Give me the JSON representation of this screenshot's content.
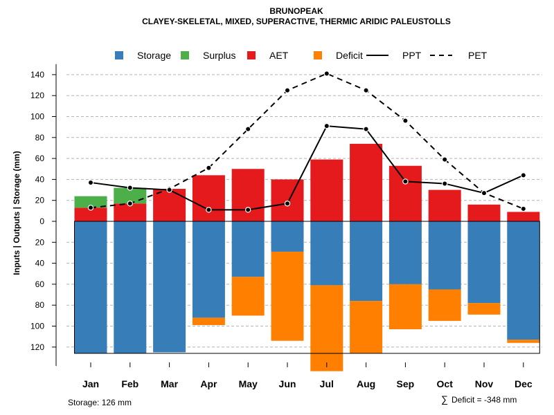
{
  "chart_data": {
    "type": "bar",
    "title": "BRUNOPEAK",
    "subtitle": "CLAYEY-SKELETAL, MIXED, SUPERACTIVE, THERMIC ARIDIC PALEUSTOLLS",
    "ylabel": "Inputs | Outputs | Storage    (mm)",
    "categories": [
      "Jan",
      "Feb",
      "Mar",
      "Apr",
      "May",
      "Jun",
      "Jul",
      "Aug",
      "Sep",
      "Oct",
      "Nov",
      "Dec"
    ],
    "ylim": [
      -140,
      150
    ],
    "y_ticks": [
      140,
      120,
      100,
      80,
      60,
      40,
      20,
      0,
      -20,
      -40,
      -60,
      -80,
      -100,
      -120
    ],
    "y_tick_labels": [
      "140",
      "120",
      "100",
      "80",
      "60",
      "40",
      "20",
      "0",
      "20",
      "40",
      "60",
      "80",
      "100",
      "120"
    ],
    "grid": true,
    "legend": [
      {
        "name": "Storage",
        "kind": "box",
        "color": "#377EB8"
      },
      {
        "name": "Surplus",
        "kind": "box",
        "color": "#4DAF4A"
      },
      {
        "name": "AET",
        "kind": "box",
        "color": "#E41A1C"
      },
      {
        "name": "Deficit",
        "kind": "box",
        "color": "#FF7F00"
      },
      {
        "name": "PPT",
        "kind": "solid-line",
        "color": "#000000"
      },
      {
        "name": "PET",
        "kind": "dashed-line",
        "color": "#000000"
      }
    ],
    "storage_capacity": 126,
    "series": [
      {
        "name": "AET",
        "color": "#E41A1C",
        "values": [
          13,
          17,
          31,
          44,
          50,
          40,
          59,
          74,
          53,
          30,
          16,
          9
        ]
      },
      {
        "name": "Surplus",
        "color": "#4DAF4A",
        "values": [
          11,
          15,
          0,
          0,
          0,
          0,
          0,
          0,
          0,
          0,
          0,
          0
        ]
      },
      {
        "name": "Storage",
        "color": "#377EB8",
        "values": [
          126,
          126,
          125,
          92,
          53,
          29,
          61,
          76,
          60,
          65,
          78,
          113
        ]
      },
      {
        "name": "Deficit",
        "color": "#FF7F00",
        "values": [
          0,
          0,
          0,
          7,
          37,
          85,
          82,
          50,
          43,
          30,
          11,
          3
        ]
      },
      {
        "name": "PPT",
        "color": "#000000",
        "values": [
          37,
          32,
          30,
          11,
          11,
          17,
          91,
          88,
          38,
          36,
          27,
          44
        ]
      },
      {
        "name": "PET",
        "color": "#000000",
        "values": [
          13,
          17,
          31,
          51,
          88,
          125,
          141,
          125,
          96,
          59,
          27,
          12
        ]
      }
    ],
    "footer_left": "Storage: 126 mm",
    "footer_right_symbol": "∑",
    "footer_right": "Deficit = -348 mm"
  }
}
